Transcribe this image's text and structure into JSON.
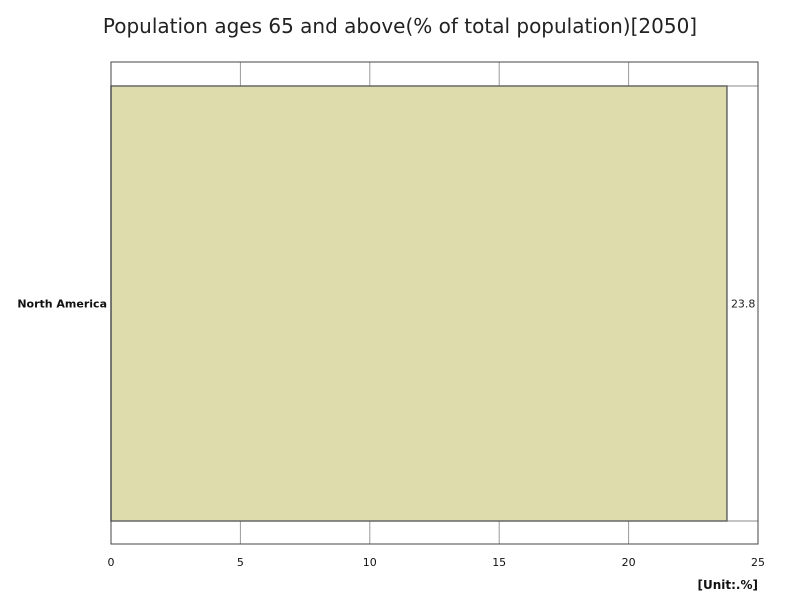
{
  "chart_data": {
    "type": "bar",
    "orientation": "horizontal",
    "title": "Population ages 65 and above(% of total population)[2050]",
    "categories": [
      "North America"
    ],
    "values": [
      23.8
    ],
    "value_labels": [
      "23.8"
    ],
    "xlim": [
      0,
      25
    ],
    "x_ticks": [
      0,
      5,
      10,
      15,
      20,
      25
    ],
    "unit_label": "[Unit:.%]",
    "grid": true,
    "bar_color": "#dedcad",
    "bar_stroke": "#666666"
  }
}
